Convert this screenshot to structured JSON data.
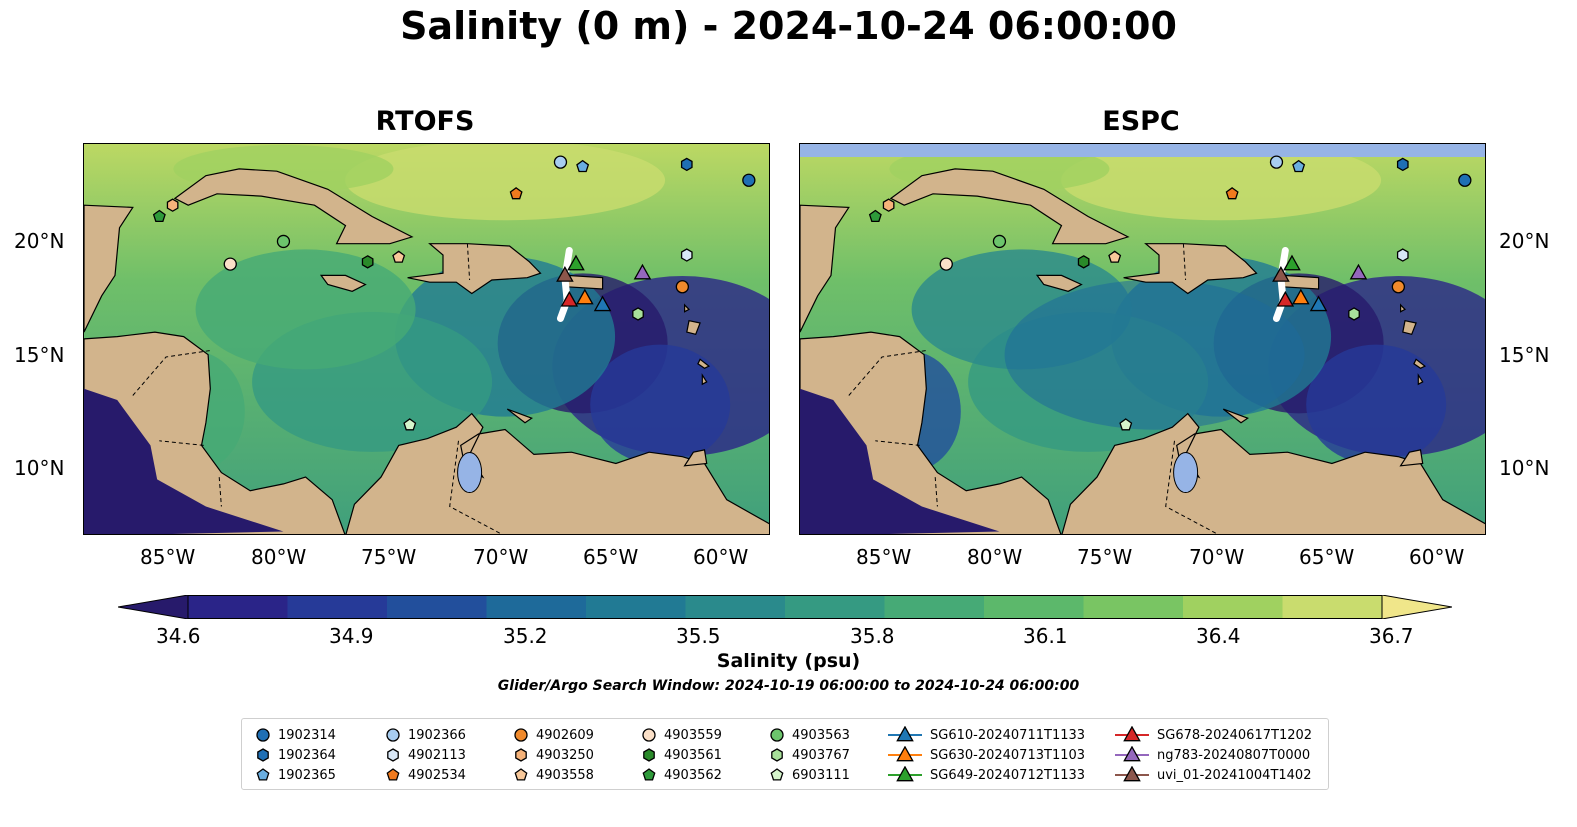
{
  "title": "Salinity (0 m) - 2024-10-24 06:00:00",
  "panels": [
    {
      "title": "RTOFS"
    },
    {
      "title": "ESPC"
    }
  ],
  "axes": {
    "lon_ticks": [
      "85°W",
      "80°W",
      "75°W",
      "70°W",
      "65°W",
      "60°W"
    ],
    "lat_ticks": [
      "20°N",
      "15°N",
      "10°N"
    ]
  },
  "colorbar": {
    "ticks": [
      "34.6",
      "34.9",
      "35.2",
      "35.5",
      "35.8",
      "36.1",
      "36.4",
      "36.7"
    ],
    "label": "Salinity (psu)",
    "range": [
      34.6,
      36.7
    ],
    "colors": [
      "#271a6b",
      "#2a2488",
      "#263a98",
      "#224f9c",
      "#1e6a9a",
      "#217a94",
      "#2a8a8c",
      "#359a82",
      "#46aa76",
      "#5cb86b",
      "#79c563",
      "#a0d160",
      "#c9dc6e",
      "#f0e68a"
    ]
  },
  "search_window": "Glider/Argo Search Window: 2024-10-19 06:00:00 to 2024-10-24 06:00:00",
  "legend": {
    "items": [
      {
        "label": "1902314",
        "marker": "circle",
        "color": "#1f6fb4"
      },
      {
        "label": "1902364",
        "marker": "hexagon",
        "color": "#1f6fb4"
      },
      {
        "label": "1902365",
        "marker": "pentagon",
        "color": "#6aaee0"
      },
      {
        "label": "1902366",
        "marker": "circle",
        "color": "#a8cdf0"
      },
      {
        "label": "4902113",
        "marker": "hexagon",
        "color": "#d9e8f7"
      },
      {
        "label": "4902534",
        "marker": "pentagon",
        "color": "#f07a1e"
      },
      {
        "label": "4902609",
        "marker": "circle",
        "color": "#f08a2c"
      },
      {
        "label": "4903250",
        "marker": "hexagon",
        "color": "#f6b37a"
      },
      {
        "label": "4903558",
        "marker": "pentagon",
        "color": "#f8c89a"
      },
      {
        "label": "4903559",
        "marker": "circle",
        "color": "#fbe0c8"
      },
      {
        "label": "4903561",
        "marker": "hexagon",
        "color": "#2a8a2a"
      },
      {
        "label": "4903562",
        "marker": "pentagon",
        "color": "#2e9a3a"
      },
      {
        "label": "4903563",
        "marker": "circle",
        "color": "#6cc46c"
      },
      {
        "label": "4903767",
        "marker": "hexagon",
        "color": "#a8e09a"
      },
      {
        "label": "6903111",
        "marker": "pentagon",
        "color": "#d6f5cc"
      },
      {
        "label": "SG610-20240711T1133",
        "marker": "triangle-line",
        "color": "#1f77b4"
      },
      {
        "label": "SG630-20240713T1103",
        "marker": "triangle-line",
        "color": "#ff7f0e"
      },
      {
        "label": "SG649-20240712T1133",
        "marker": "triangle-line",
        "color": "#2ca02c"
      },
      {
        "label": "SG678-20240617T1202",
        "marker": "triangle-line",
        "color": "#d62728"
      },
      {
        "label": "ng783-20240807T0000",
        "marker": "triangle-line",
        "color": "#9467bd"
      },
      {
        "label": "uvi_01-20241004T1402",
        "marker": "triangle-line",
        "color": "#8c564b"
      }
    ]
  },
  "map_colors": {
    "land": "#d2b48c",
    "lake": "#96b4e6",
    "low_salinity": "#271a6b",
    "mid_salinity": "#2c8a8a",
    "high_salinity": "#c9dc6e",
    "glider_track": "#ffffff"
  },
  "observations": [
    {
      "id": "1902314",
      "lon": -59.0,
      "lat": 22.7
    },
    {
      "id": "1902364",
      "lon": -61.8,
      "lat": 23.4
    },
    {
      "id": "1902365",
      "lon": -66.5,
      "lat": 23.3
    },
    {
      "id": "1902366",
      "lon": -67.5,
      "lat": 23.5
    },
    {
      "id": "4902113",
      "lon": -61.8,
      "lat": 19.4
    },
    {
      "id": "4902534",
      "lon": -69.5,
      "lat": 22.1
    },
    {
      "id": "4902609",
      "lon": -62.0,
      "lat": 18.0
    },
    {
      "id": "4903250",
      "lon": -85.0,
      "lat": 21.6
    },
    {
      "id": "4903558",
      "lon": -74.8,
      "lat": 19.3
    },
    {
      "id": "4903559",
      "lon": -82.4,
      "lat": 19.0
    },
    {
      "id": "4903561",
      "lon": -76.2,
      "lat": 19.1
    },
    {
      "id": "4903562",
      "lon": -85.6,
      "lat": 21.1
    },
    {
      "id": "4903563",
      "lon": -80.0,
      "lat": 20.0
    },
    {
      "id": "4903767",
      "lon": -64.0,
      "lat": 16.8
    },
    {
      "id": "6903111",
      "lon": -74.3,
      "lat": 11.9
    },
    {
      "id": "SG610-20240711T1133",
      "lon": -65.6,
      "lat": 17.2
    },
    {
      "id": "SG630-20240713T1103",
      "lon": -66.4,
      "lat": 17.5
    },
    {
      "id": "SG649-20240712T1133",
      "lon": -66.8,
      "lat": 19.0
    },
    {
      "id": "SG678-20240617T1202",
      "lon": -67.1,
      "lat": 17.4
    },
    {
      "id": "ng783-20240807T0000",
      "lon": -63.8,
      "lat": 18.6
    },
    {
      "id": "uvi_01-20241004T1402",
      "lon": -67.3,
      "lat": 18.5
    }
  ]
}
